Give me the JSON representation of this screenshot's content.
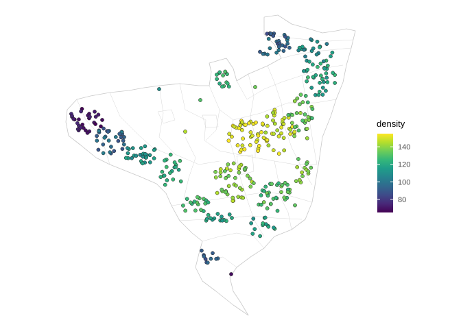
{
  "legend": {
    "title": "density",
    "ticks": [
      80,
      100,
      120,
      140
    ],
    "tick_labels": [
      "80",
      "100",
      "120",
      "140"
    ],
    "range": [
      65,
      155
    ],
    "palette": [
      "#440154",
      "#482878",
      "#3e4a89",
      "#31688e",
      "#26828e",
      "#1f9e89",
      "#35b779",
      "#6dcd59",
      "#b4de2c",
      "#fde725"
    ]
  },
  "map": {
    "projection": "none",
    "color_scale": "viridis",
    "point_layer": "density"
  }
}
